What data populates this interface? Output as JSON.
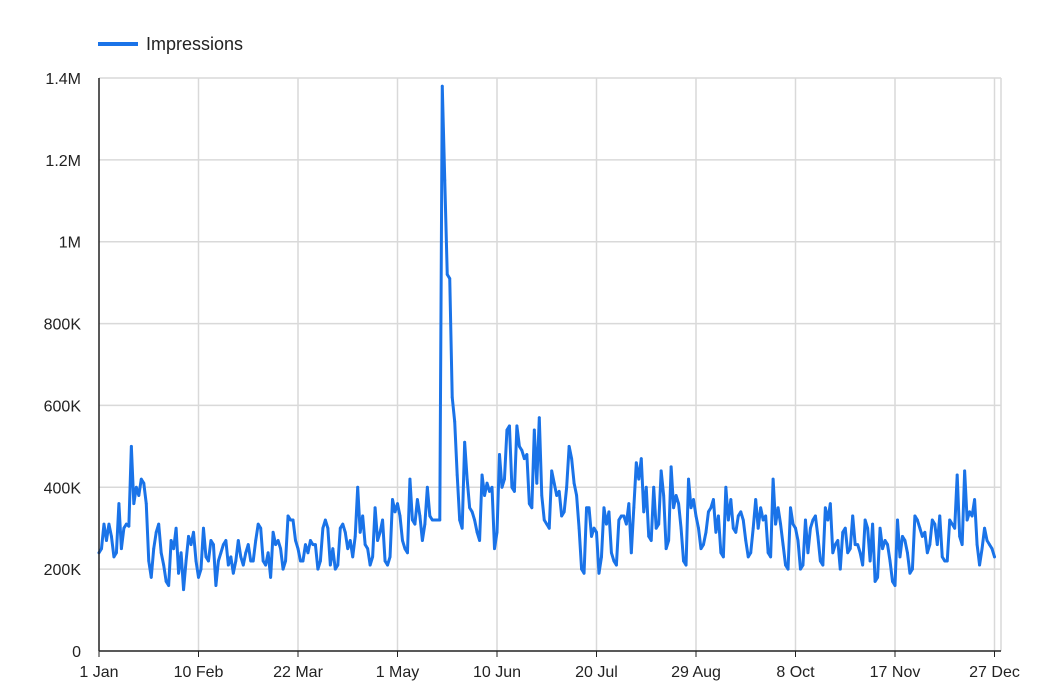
{
  "legend": {
    "label": "Impressions"
  },
  "colors": {
    "series": "#1a73e8",
    "grid": "#d9d9d9",
    "axis": "#222222"
  },
  "chart_data": {
    "type": "line",
    "x_axis": {
      "ticks": [
        "1 Jan",
        "10 Feb",
        "22 Mar",
        "1 May",
        "10 Jun",
        "20 Jul",
        "29 Aug",
        "8 Oct",
        "17 Nov",
        "27 Dec"
      ],
      "tick_days": [
        0,
        40,
        80,
        120,
        160,
        200,
        240,
        280,
        320,
        360
      ],
      "range": [
        "1 Jan",
        "30 Dec"
      ]
    },
    "y_axis": {
      "ticks": [
        "0",
        "200K",
        "400K",
        "600K",
        "800K",
        "1M",
        "1.2M",
        "1.4M"
      ],
      "tick_values": [
        0,
        200000,
        400000,
        600000,
        800000,
        1000000,
        1200000,
        1400000
      ],
      "ylim": [
        0,
        1400000
      ]
    },
    "grid": true,
    "legend_position": "top-left",
    "series": [
      {
        "name": "Impressions",
        "values": [
          240000,
          250000,
          310000,
          270000,
          310000,
          280000,
          230000,
          240000,
          360000,
          250000,
          300000,
          310000,
          305000,
          500000,
          360000,
          400000,
          380000,
          420000,
          410000,
          360000,
          220000,
          180000,
          250000,
          290000,
          310000,
          240000,
          210000,
          170000,
          160000,
          270000,
          250000,
          300000,
          190000,
          240000,
          150000,
          220000,
          280000,
          260000,
          290000,
          220000,
          180000,
          200000,
          300000,
          230000,
          220000,
          270000,
          260000,
          160000,
          220000,
          240000,
          260000,
          270000,
          210000,
          230000,
          190000,
          220000,
          270000,
          230000,
          210000,
          240000,
          260000,
          220000,
          220000,
          270000,
          310000,
          300000,
          220000,
          210000,
          240000,
          180000,
          290000,
          260000,
          270000,
          250000,
          200000,
          220000,
          330000,
          320000,
          320000,
          270000,
          250000,
          220000,
          220000,
          260000,
          240000,
          270000,
          260000,
          260000,
          200000,
          220000,
          300000,
          320000,
          300000,
          210000,
          250000,
          200000,
          210000,
          300000,
          310000,
          290000,
          250000,
          270000,
          230000,
          280000,
          400000,
          290000,
          330000,
          260000,
          250000,
          210000,
          230000,
          350000,
          270000,
          290000,
          320000,
          220000,
          210000,
          230000,
          370000,
          340000,
          360000,
          330000,
          270000,
          250000,
          240000,
          420000,
          320000,
          310000,
          370000,
          330000,
          270000,
          310000,
          400000,
          330000,
          320000,
          320000,
          320000,
          320000,
          1380000,
          1150000,
          920000,
          910000,
          620000,
          560000,
          430000,
          320000,
          300000,
          510000,
          420000,
          350000,
          340000,
          320000,
          290000,
          270000,
          430000,
          380000,
          410000,
          390000,
          400000,
          250000,
          290000,
          480000,
          400000,
          420000,
          540000,
          550000,
          400000,
          390000,
          550000,
          500000,
          490000,
          470000,
          480000,
          360000,
          350000,
          540000,
          410000,
          570000,
          380000,
          320000,
          310000,
          300000,
          440000,
          410000,
          380000,
          390000,
          330000,
          340000,
          400000,
          500000,
          470000,
          410000,
          380000,
          300000,
          200000,
          190000,
          350000,
          350000,
          280000,
          300000,
          290000,
          190000,
          230000,
          350000,
          310000,
          340000,
          240000,
          220000,
          210000,
          320000,
          330000,
          330000,
          310000,
          360000,
          240000,
          350000,
          460000,
          420000,
          470000,
          340000,
          400000,
          280000,
          270000,
          400000,
          300000,
          310000,
          440000,
          380000,
          250000,
          270000,
          450000,
          350000,
          380000,
          360000,
          300000,
          220000,
          210000,
          420000,
          350000,
          370000,
          330000,
          300000,
          250000,
          260000,
          290000,
          340000,
          350000,
          370000,
          290000,
          330000,
          240000,
          230000,
          400000,
          320000,
          370000,
          300000,
          290000,
          330000,
          340000,
          320000,
          270000,
          230000,
          240000,
          300000,
          370000,
          300000,
          350000,
          320000,
          330000,
          240000,
          230000,
          420000,
          310000,
          350000,
          310000,
          260000,
          210000,
          200000,
          350000,
          310000,
          300000,
          270000,
          200000,
          210000,
          320000,
          240000,
          300000,
          320000,
          330000,
          280000,
          220000,
          210000,
          350000,
          320000,
          360000,
          240000,
          260000,
          270000,
          200000,
          290000,
          300000,
          240000,
          250000,
          330000,
          260000,
          260000,
          240000,
          210000,
          320000,
          300000,
          220000,
          310000,
          170000,
          180000,
          300000,
          250000,
          270000,
          260000,
          220000,
          170000,
          160000,
          320000,
          230000,
          280000,
          270000,
          240000,
          190000,
          200000,
          330000,
          320000,
          300000,
          280000,
          290000,
          240000,
          260000,
          320000,
          310000,
          260000,
          330000,
          230000,
          220000,
          220000,
          320000,
          310000,
          300000,
          430000,
          280000,
          260000,
          440000,
          320000,
          340000,
          330000,
          370000,
          260000,
          210000,
          250000,
          300000,
          270000,
          260000,
          250000,
          230000
        ]
      }
    ]
  }
}
